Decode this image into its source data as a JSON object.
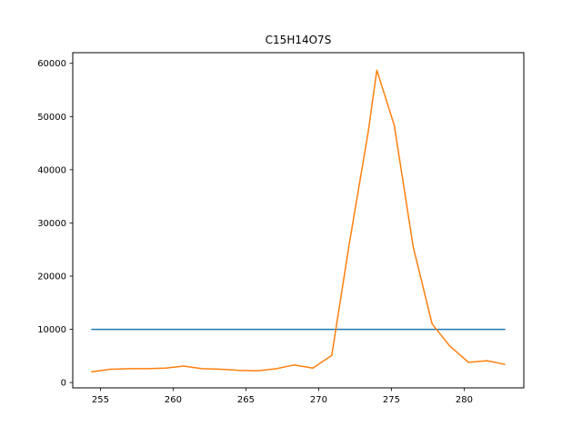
{
  "chart_data": {
    "type": "line",
    "title": "C15H14O7S",
    "xlabel": "",
    "ylabel": "",
    "xlim": [
      253.1,
      284.1
    ],
    "ylim": [
      -1000,
      62000
    ],
    "grid": false,
    "x_ticks": [
      255,
      260,
      265,
      270,
      275,
      280
    ],
    "y_ticks": [
      0,
      10000,
      20000,
      30000,
      40000,
      50000,
      60000
    ],
    "series": [
      {
        "color": "#1f77b4",
        "x": [
          254.4,
          282.8
        ],
        "y": [
          10000,
          10000
        ]
      },
      {
        "color": "#ff7f0e",
        "x": [
          254.4,
          255.7,
          257.0,
          258.2,
          259.5,
          260.7,
          262.0,
          263.3,
          264.5,
          265.8,
          267.1,
          268.3,
          269.6,
          270.9,
          272.1,
          273.4,
          274.0,
          275.2,
          276.5,
          277.8,
          279.0,
          280.3,
          281.6,
          282.8
        ],
        "y": [
          2000,
          2500,
          2600,
          2600,
          2700,
          3100,
          2600,
          2500,
          2300,
          2200,
          2600,
          3300,
          2700,
          5100,
          26000,
          47000,
          58700,
          48300,
          25500,
          11000,
          6900,
          3800,
          4100,
          3400
        ]
      }
    ]
  }
}
